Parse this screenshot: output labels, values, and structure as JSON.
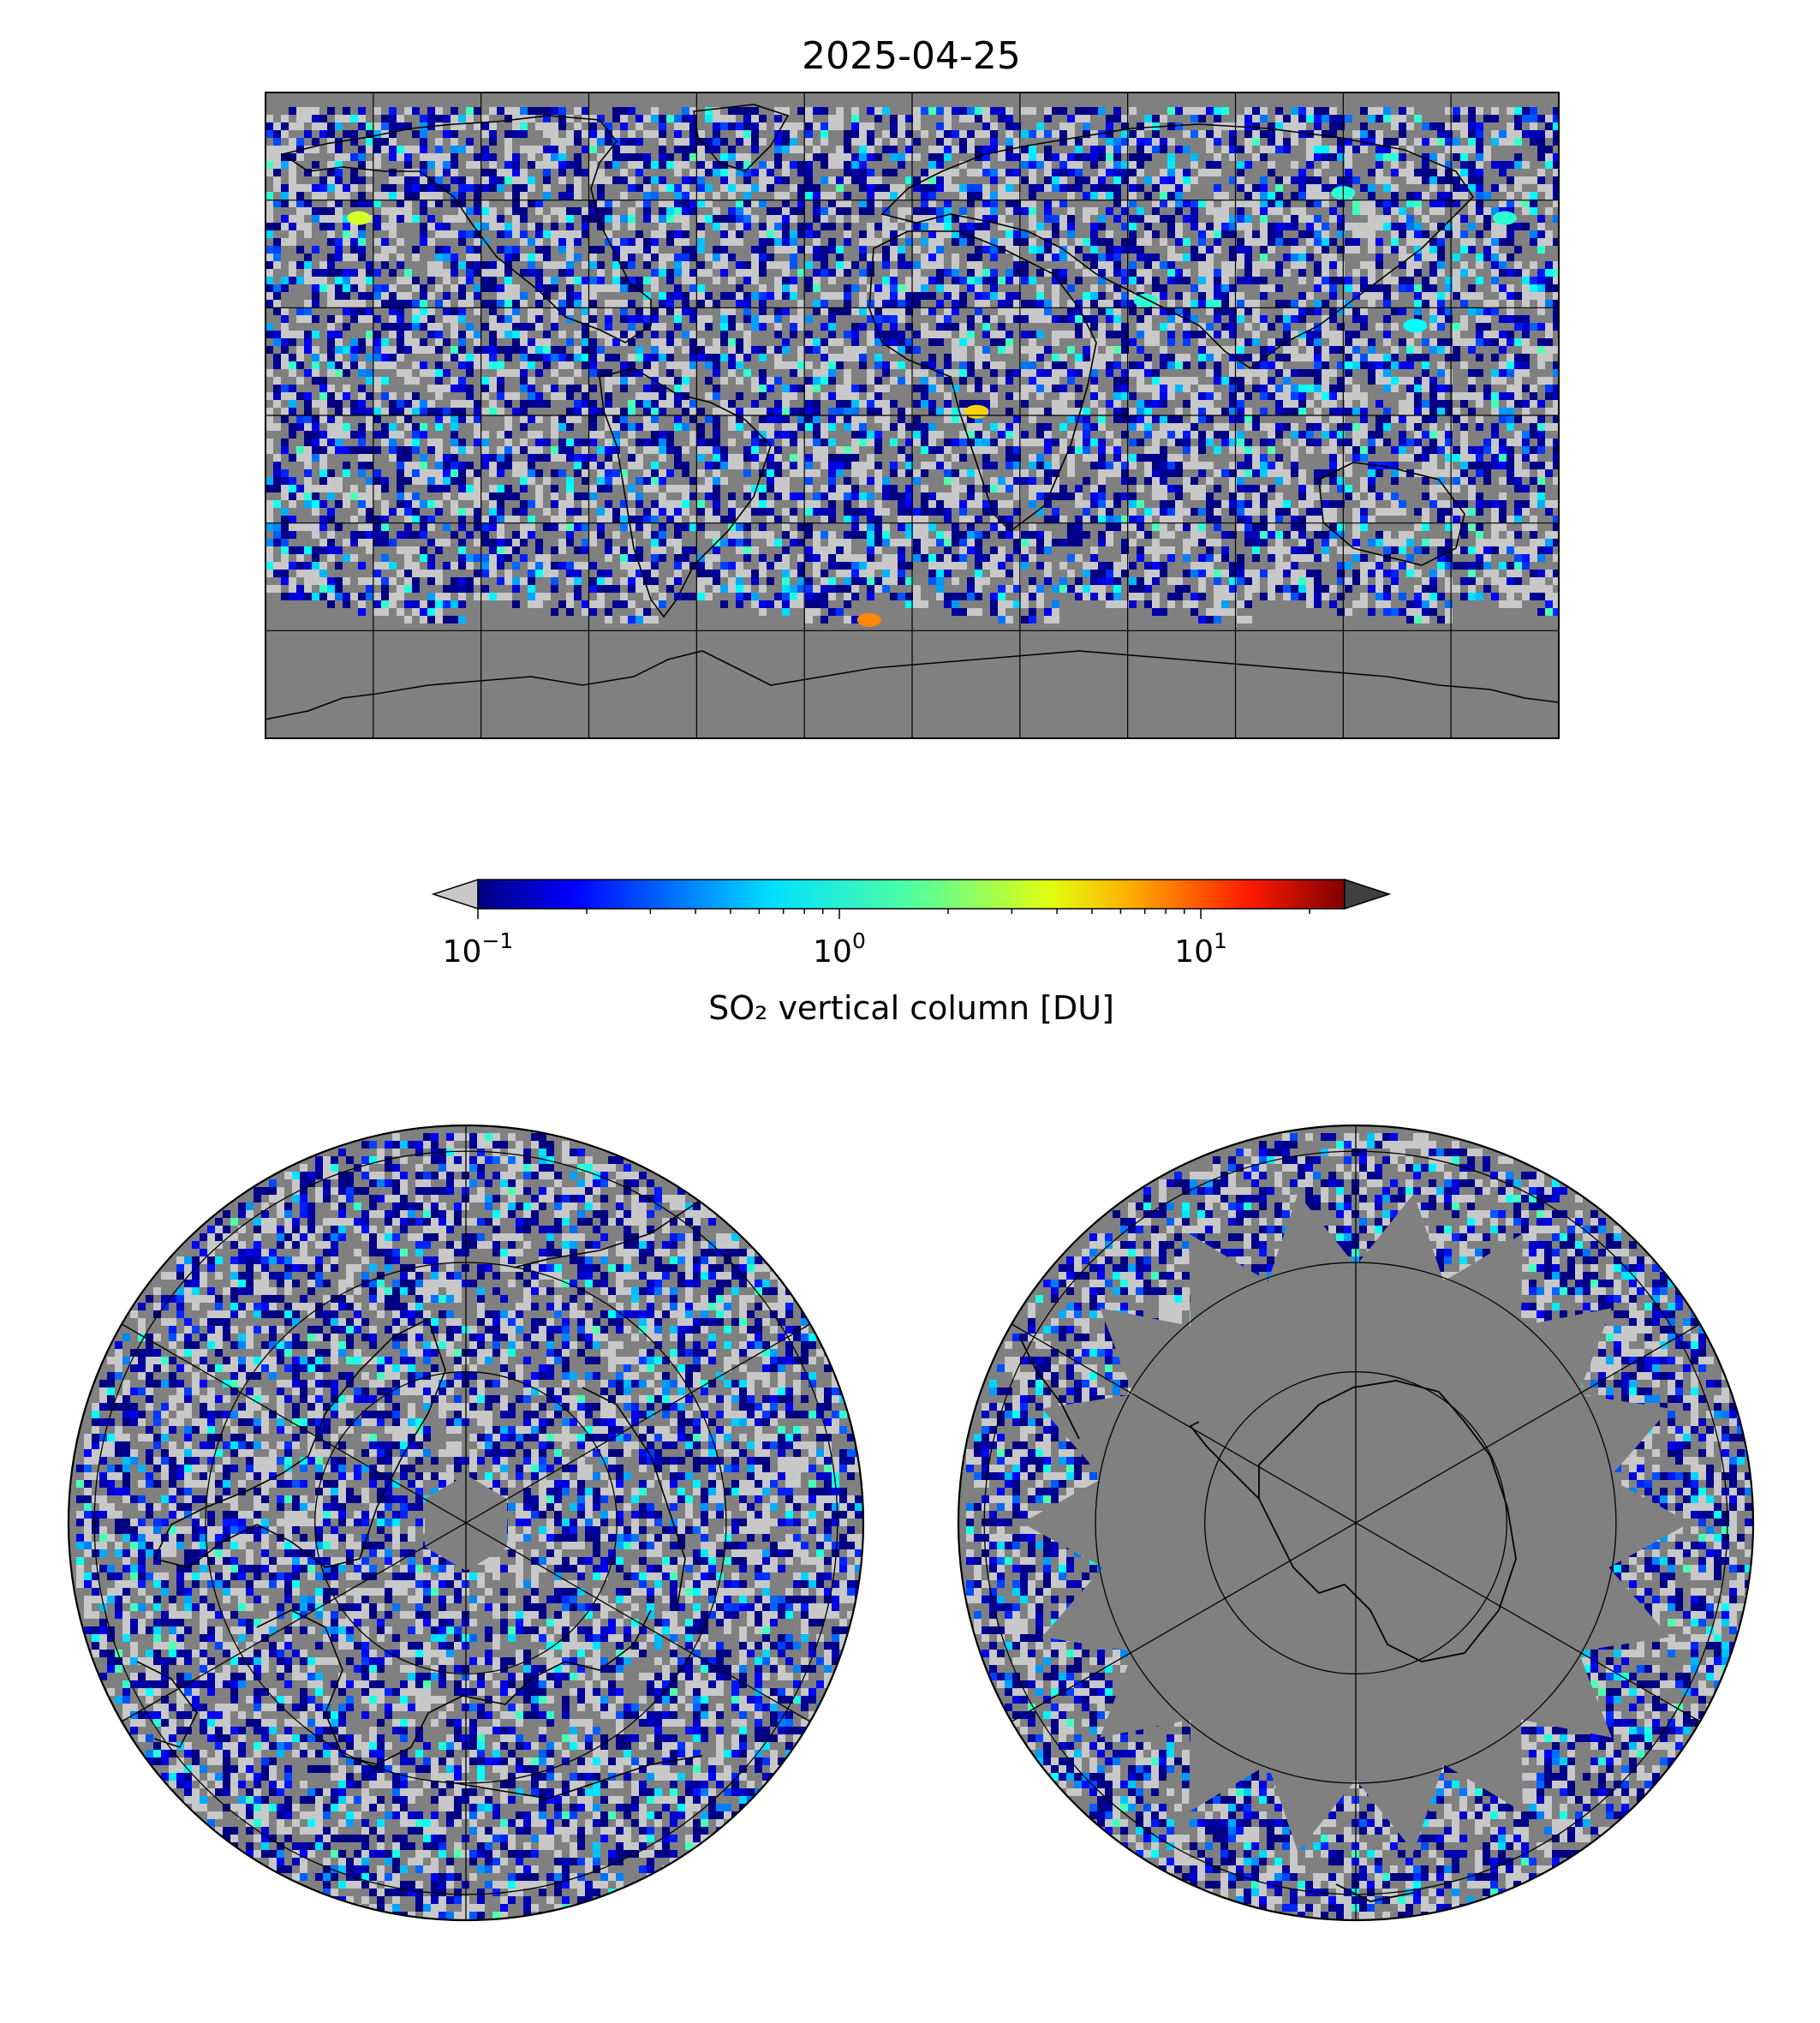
{
  "figure": {
    "title": "2025-04-25"
  },
  "colorbar": {
    "label": "SO₂ vertical column [DU]",
    "scale": "log",
    "min": 0.1,
    "max": 25,
    "colormap": "jet",
    "extend_low_color": "#c8c8c8",
    "extend_high_color": "#404040",
    "ticks": [
      {
        "value": 0.1,
        "base": "10",
        "exp": "−1"
      },
      {
        "value": 1,
        "base": "10",
        "exp": "0"
      },
      {
        "value": 10,
        "base": "10",
        "exp": "1"
      }
    ]
  },
  "maps": {
    "global": {
      "projection": "plate-carree",
      "lon_range": [
        -180,
        180
      ],
      "lat_range": [
        -90,
        90
      ],
      "gridline_spacing_deg": 30,
      "nodata_color": "#808080",
      "hotspots": [
        {
          "lon": 18,
          "lat": 1,
          "value": 4
        },
        {
          "lon": -12,
          "lat": -57,
          "value": 6
        },
        {
          "lon": -154,
          "lat": 55,
          "value": 2.5
        },
        {
          "lon": 120,
          "lat": 62,
          "value": 1
        },
        {
          "lon": 165,
          "lat": 55,
          "value": 1
        },
        {
          "lon": 65,
          "lat": 32,
          "value": 1
        },
        {
          "lon": 140,
          "lat": 25,
          "value": 0.8
        }
      ]
    },
    "north_polar": {
      "projection": "north-polar-stereographic",
      "boundary_lat": 0,
      "gridline_lats": [
        30,
        60
      ],
      "gridline_meridians_deg": 60
    },
    "south_polar": {
      "projection": "south-polar-stereographic",
      "boundary_lat": 0,
      "gridline_lats": [
        -30,
        -60
      ],
      "gridline_meridians_deg": 60
    }
  }
}
